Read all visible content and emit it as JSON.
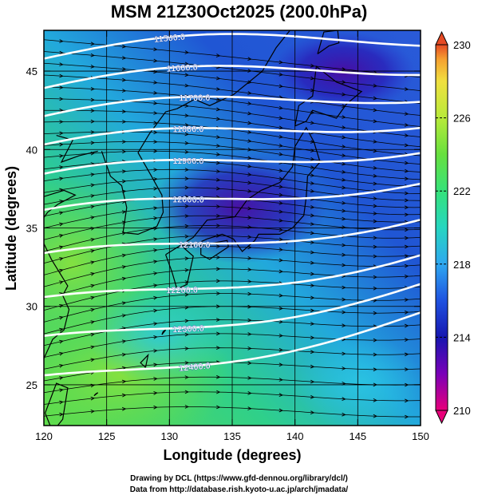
{
  "title": "MSM 21Z30Oct2025 (200.0hPa)",
  "x_axis": {
    "label": "Longitude (degrees)",
    "ticks": [
      "120",
      "125",
      "130",
      "135",
      "140",
      "145",
      "150"
    ],
    "range": [
      120,
      150
    ]
  },
  "y_axis": {
    "label": "Latitude  (degrees)",
    "ticks": [
      "25",
      "30",
      "35",
      "40",
      "45"
    ],
    "range": [
      22.4,
      47.6
    ]
  },
  "colorbar": {
    "ticks": [
      "230",
      "226",
      "222",
      "218",
      "214",
      "210"
    ],
    "range": [
      210,
      230
    ],
    "colors": [
      "#e8007a",
      "#7a00b8",
      "#1616b0",
      "#1f52e0",
      "#2fa8f0",
      "#26d6c0",
      "#36e27a",
      "#67e03e",
      "#b8ea3a",
      "#f0e040",
      "#f5a030",
      "#e64a24"
    ]
  },
  "contours": [
    {
      "label": "11500.0"
    },
    {
      "label": "11600.0"
    },
    {
      "label": "11700.0"
    },
    {
      "label": "11800.0"
    },
    {
      "label": "11900.0"
    },
    {
      "label": "12000.0"
    },
    {
      "label": "12100.0"
    },
    {
      "label": "12200.0"
    },
    {
      "label": "12300.0"
    },
    {
      "label": "12400.0"
    }
  ],
  "credits": {
    "line1": "Drawing by DCL (https://www.gfd-dennou.org/library/dcl/)",
    "line2": "Data from http://database.rish.kyoto-u.ac.jp/arch/jmadata/"
  }
}
